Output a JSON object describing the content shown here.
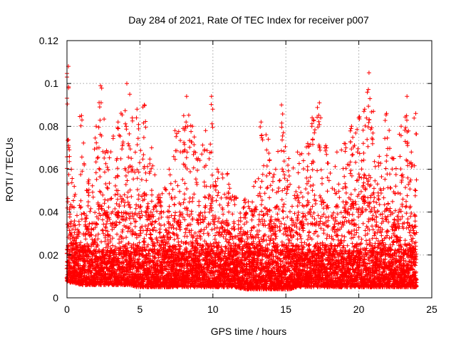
{
  "chart_data": {
    "type": "scatter",
    "title": "Day 284 of 2021, Rate Of TEC Index for receiver p007",
    "xlabel": "GPS time / hours",
    "ylabel": "ROTI / TECUs",
    "xlim": [
      0,
      25
    ],
    "ylim": [
      0,
      0.12
    ],
    "xticks": [
      "0",
      "5",
      "10",
      "15",
      "20",
      "25"
    ],
    "yticks": [
      "0",
      "0.02",
      "0.04",
      "0.06",
      "0.08",
      "0.1",
      "0.12"
    ],
    "grid": true,
    "legend": "none",
    "marker": "plus",
    "color": "#ff0000",
    "envelope": {
      "x": [
        0.0,
        0.1,
        0.3,
        0.5,
        1.0,
        1.5,
        2.0,
        2.3,
        2.8,
        3.5,
        4.1,
        4.3,
        4.8,
        5.3,
        5.8,
        6.3,
        7.0,
        7.4,
        8.0,
        8.2,
        8.6,
        9.0,
        9.5,
        9.9,
        10.3,
        11.0,
        11.5,
        12.2,
        12.8,
        13.3,
        13.8,
        14.3,
        14.7,
        15.2,
        15.8,
        16.5,
        16.8,
        17.3,
        17.8,
        18.5,
        19.0,
        19.5,
        20.0,
        20.4,
        20.7,
        21.0,
        21.4,
        21.9,
        22.4,
        22.9,
        23.3,
        23.6,
        23.9
      ],
      "peak": [
        0.103,
        0.108,
        0.06,
        0.052,
        0.085,
        0.055,
        0.08,
        0.099,
        0.068,
        0.082,
        0.1,
        0.095,
        0.088,
        0.09,
        0.07,
        0.048,
        0.06,
        0.078,
        0.085,
        0.094,
        0.08,
        0.065,
        0.078,
        0.094,
        0.06,
        0.058,
        0.047,
        0.046,
        0.052,
        0.082,
        0.074,
        0.06,
        0.09,
        0.065,
        0.068,
        0.072,
        0.084,
        0.091,
        0.07,
        0.068,
        0.072,
        0.08,
        0.084,
        0.088,
        0.105,
        0.087,
        0.066,
        0.086,
        0.065,
        0.08,
        0.094,
        0.068,
        0.086
      ],
      "bulk": [
        0.045,
        0.05,
        0.032,
        0.03,
        0.036,
        0.033,
        0.038,
        0.045,
        0.038,
        0.042,
        0.05,
        0.048,
        0.046,
        0.048,
        0.04,
        0.032,
        0.036,
        0.04,
        0.045,
        0.05,
        0.042,
        0.036,
        0.04,
        0.046,
        0.034,
        0.032,
        0.028,
        0.03,
        0.032,
        0.044,
        0.04,
        0.034,
        0.045,
        0.036,
        0.04,
        0.044,
        0.052,
        0.05,
        0.036,
        0.034,
        0.04,
        0.044,
        0.048,
        0.05,
        0.055,
        0.048,
        0.038,
        0.046,
        0.036,
        0.042,
        0.046,
        0.036,
        0.04
      ],
      "floor": [
        0.008,
        0.007,
        0.007,
        0.007,
        0.006,
        0.006,
        0.006,
        0.006,
        0.006,
        0.006,
        0.006,
        0.006,
        0.005,
        0.005,
        0.005,
        0.005,
        0.005,
        0.005,
        0.005,
        0.005,
        0.005,
        0.005,
        0.005,
        0.005,
        0.005,
        0.005,
        0.005,
        0.004,
        0.004,
        0.004,
        0.004,
        0.004,
        0.004,
        0.004,
        0.005,
        0.005,
        0.005,
        0.005,
        0.005,
        0.005,
        0.005,
        0.005,
        0.005,
        0.005,
        0.005,
        0.005,
        0.005,
        0.005,
        0.005,
        0.005,
        0.005,
        0.005,
        0.005
      ]
    }
  }
}
